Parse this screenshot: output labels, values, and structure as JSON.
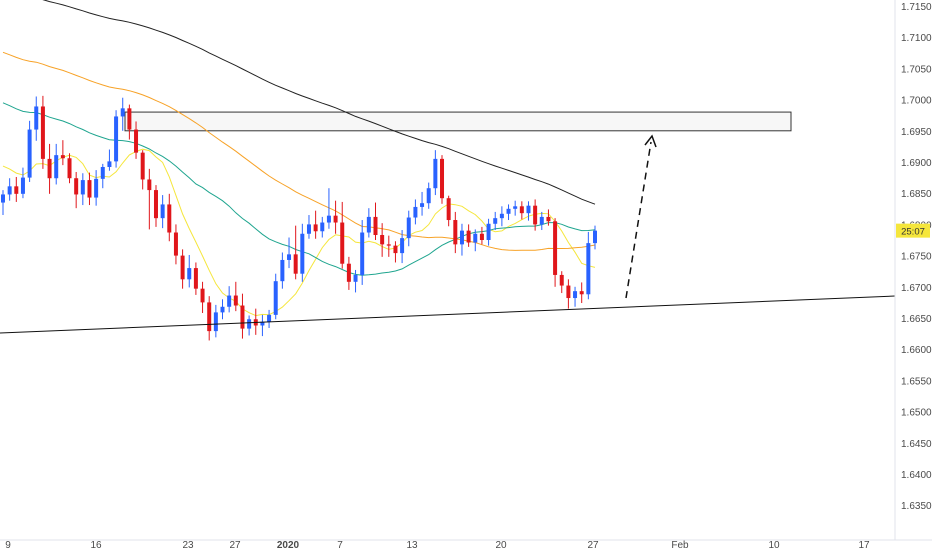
{
  "colors": {
    "bull": "#2962ff",
    "bear": "#e0161b",
    "ma_yellow": "#f5e63c",
    "ma_orange": "#f7a227",
    "ma_teal": "#1fa58f",
    "ma_black": "#222222",
    "axis_text": "#4a4a4a",
    "badge_bg": "#f5e63c"
  },
  "chart_data": {
    "type": "candlestick",
    "price_axis": {
      "min": 1.63,
      "max": 1.715,
      "ticks": [
        "1.71500",
        "1.71000",
        "1.70500",
        "1.70000",
        "1.69500",
        "1.69000",
        "1.68500",
        "1.68000",
        "1.67500",
        "1.67000",
        "1.66500",
        "1.66000",
        "1.65500",
        "1.65000",
        "1.64500",
        "1.64000",
        "1.63500"
      ]
    },
    "time_axis": {
      "ticks": [
        "9",
        "16",
        "23",
        "27",
        "2020",
        "7",
        "13",
        "20",
        "27",
        "Feb",
        "10",
        "17"
      ]
    },
    "current_price_badge": "25:07",
    "candles": [
      [
        1.6835,
        1.6855,
        1.6815,
        1.6848
      ],
      [
        1.6848,
        1.6874,
        1.6838,
        1.6861
      ],
      [
        1.6861,
        1.6876,
        1.6836,
        1.6849
      ],
      [
        1.6849,
        1.6891,
        1.6842,
        1.6875
      ],
      [
        1.6875,
        1.6966,
        1.6868,
        1.6952
      ],
      [
        1.6952,
        1.7005,
        1.6934,
        1.6989
      ],
      [
        1.6989,
        1.7006,
        1.6889,
        1.6905
      ],
      [
        1.6905,
        1.6929,
        1.6849,
        1.6874
      ],
      [
        1.6874,
        1.6929,
        1.6864,
        1.6911
      ],
      [
        1.6911,
        1.6935,
        1.6895,
        1.6906
      ],
      [
        1.6906,
        1.6914,
        1.6866,
        1.6874
      ],
      [
        1.6874,
        1.6884,
        1.6826,
        1.6848
      ],
      [
        1.6848,
        1.6882,
        1.6831,
        1.6871
      ],
      [
        1.6871,
        1.6883,
        1.6831,
        1.6843
      ],
      [
        1.6843,
        1.6887,
        1.683,
        1.6873
      ],
      [
        1.6873,
        1.6897,
        1.6858,
        1.6892
      ],
      [
        1.6892,
        1.692,
        1.6886,
        1.6901
      ],
      [
        1.6901,
        1.6983,
        1.6891,
        1.6973
      ],
      [
        1.6973,
        1.7003,
        1.695,
        1.6986
      ],
      [
        1.6986,
        1.6992,
        1.6936,
        1.6952
      ],
      [
        1.6952,
        1.6965,
        1.6905,
        1.6915
      ],
      [
        1.6915,
        1.6919,
        1.6856,
        1.6872
      ],
      [
        1.6872,
        1.6889,
        1.6792,
        1.6855
      ],
      [
        1.6855,
        1.6863,
        1.6796,
        1.681
      ],
      [
        1.681,
        1.6847,
        1.6794,
        1.6832
      ],
      [
        1.6832,
        1.6849,
        1.6773,
        1.6787
      ],
      [
        1.6787,
        1.68,
        1.6736,
        1.675
      ],
      [
        1.675,
        1.676,
        1.6697,
        1.6712
      ],
      [
        1.6712,
        1.6751,
        1.6699,
        1.673
      ],
      [
        1.673,
        1.6739,
        1.6687,
        1.6697
      ],
      [
        1.6697,
        1.6708,
        1.6658,
        1.6675
      ],
      [
        1.6675,
        1.6685,
        1.6614,
        1.6629
      ],
      [
        1.6629,
        1.6671,
        1.6619,
        1.6659
      ],
      [
        1.6659,
        1.668,
        1.6648,
        1.6668
      ],
      [
        1.6668,
        1.6701,
        1.6659,
        1.6686
      ],
      [
        1.6686,
        1.6708,
        1.6661,
        1.667
      ],
      [
        1.667,
        1.6689,
        1.6617,
        1.6633
      ],
      [
        1.6633,
        1.6654,
        1.6622,
        1.6648
      ],
      [
        1.6648,
        1.6665,
        1.6623,
        1.6638
      ],
      [
        1.6638,
        1.6655,
        1.6621,
        1.6644
      ],
      [
        1.6644,
        1.6663,
        1.6634,
        1.6655
      ],
      [
        1.6655,
        1.6721,
        1.6648,
        1.6709
      ],
      [
        1.6709,
        1.6755,
        1.6697,
        1.6743
      ],
      [
        1.6743,
        1.6779,
        1.673,
        1.6752
      ],
      [
        1.6752,
        1.6798,
        1.6712,
        1.6721
      ],
      [
        1.6721,
        1.6801,
        1.6708,
        1.6785
      ],
      [
        1.6785,
        1.6815,
        1.6777,
        1.68
      ],
      [
        1.68,
        1.6822,
        1.6777,
        1.6789
      ],
      [
        1.6789,
        1.6812,
        1.6779,
        1.6803
      ],
      [
        1.6803,
        1.6858,
        1.6793,
        1.6814
      ],
      [
        1.6814,
        1.6838,
        1.6785,
        1.6803
      ],
      [
        1.6803,
        1.6836,
        1.6729,
        1.6737
      ],
      [
        1.6737,
        1.6748,
        1.6695,
        1.6708
      ],
      [
        1.6708,
        1.6727,
        1.6691,
        1.6719
      ],
      [
        1.6719,
        1.6807,
        1.6703,
        1.6787
      ],
      [
        1.6787,
        1.6826,
        1.6779,
        1.6812
      ],
      [
        1.6812,
        1.6835,
        1.6775,
        1.6783
      ],
      [
        1.6783,
        1.6802,
        1.6748,
        1.6768
      ],
      [
        1.6768,
        1.6782,
        1.6748,
        1.6766
      ],
      [
        1.6766,
        1.6773,
        1.6739,
        1.6754
      ],
      [
        1.6754,
        1.6791,
        1.6738,
        1.6778
      ],
      [
        1.6778,
        1.6822,
        1.6765,
        1.6811
      ],
      [
        1.6811,
        1.684,
        1.68,
        1.6828
      ],
      [
        1.6828,
        1.6852,
        1.6814,
        1.6834
      ],
      [
        1.6834,
        1.6867,
        1.6825,
        1.6858
      ],
      [
        1.6858,
        1.6919,
        1.6847,
        1.6905
      ],
      [
        1.6905,
        1.6911,
        1.6833,
        1.6842
      ],
      [
        1.6842,
        1.6846,
        1.6797,
        1.6807
      ],
      [
        1.6807,
        1.682,
        1.6754,
        1.6768
      ],
      [
        1.6768,
        1.6801,
        1.675,
        1.679
      ],
      [
        1.679,
        1.68,
        1.6764,
        1.6771
      ],
      [
        1.6771,
        1.6792,
        1.6757,
        1.6785
      ],
      [
        1.6785,
        1.6796,
        1.6768,
        1.6775
      ],
      [
        1.6775,
        1.6809,
        1.6766,
        1.6801
      ],
      [
        1.6801,
        1.682,
        1.6791,
        1.681
      ],
      [
        1.681,
        1.6829,
        1.6797,
        1.6817
      ],
      [
        1.6817,
        1.6832,
        1.6807,
        1.6825
      ],
      [
        1.6825,
        1.6838,
        1.6814,
        1.6829
      ],
      [
        1.6829,
        1.6837,
        1.6808,
        1.6818
      ],
      [
        1.6818,
        1.6837,
        1.6806,
        1.683
      ],
      [
        1.683,
        1.684,
        1.679,
        1.68
      ],
      [
        1.68,
        1.682,
        1.6791,
        1.6812
      ],
      [
        1.6812,
        1.6824,
        1.6798,
        1.6805
      ],
      [
        1.6805,
        1.681,
        1.67,
        1.6719
      ],
      [
        1.6719,
        1.6725,
        1.669,
        1.6702
      ],
      [
        1.6702,
        1.6712,
        1.6665,
        1.6682
      ],
      [
        1.6682,
        1.67,
        1.6668,
        1.6693
      ],
      [
        1.6693,
        1.6707,
        1.6674,
        1.6688
      ],
      [
        1.6688,
        1.6788,
        1.668,
        1.677
      ],
      [
        1.677,
        1.6798,
        1.676,
        1.679
      ]
    ],
    "zone": {
      "top": 1.698,
      "bottom": 1.695
    },
    "annotations": [
      "dashed-projection-arrow",
      "ascending-support-trendline"
    ]
  }
}
